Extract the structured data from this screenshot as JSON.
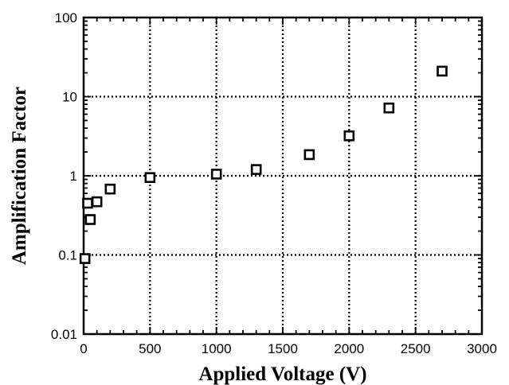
{
  "chart_data": {
    "type": "scatter",
    "xlabel": "Applied Voltage (V)",
    "ylabel": "Amplification Factor",
    "xlim": [
      0,
      3000
    ],
    "ylim": [
      0.01,
      100
    ],
    "yscale": "log",
    "grid": true,
    "x_ticks": [
      {
        "value": 0,
        "label": "0"
      },
      {
        "value": 500,
        "label": "500"
      },
      {
        "value": 1000,
        "label": "1000"
      },
      {
        "value": 1500,
        "label": "1500"
      },
      {
        "value": 2000,
        "label": "2000"
      },
      {
        "value": 2500,
        "label": "2500"
      },
      {
        "value": 3000,
        "label": "3000"
      }
    ],
    "y_ticks": [
      {
        "value": 0.01,
        "label": "0.01"
      },
      {
        "value": 0.1,
        "label": "0.1"
      },
      {
        "value": 1,
        "label": "1"
      },
      {
        "value": 10,
        "label": "10"
      },
      {
        "value": 100,
        "label": "100"
      }
    ],
    "series": [
      {
        "marker": "open-square",
        "points": [
          {
            "x": 10,
            "y": 0.09
          },
          {
            "x": 30,
            "y": 0.45
          },
          {
            "x": 50,
            "y": 0.28
          },
          {
            "x": 100,
            "y": 0.47
          },
          {
            "x": 200,
            "y": 0.68
          },
          {
            "x": 500,
            "y": 0.95
          },
          {
            "x": 1000,
            "y": 1.05
          },
          {
            "x": 1300,
            "y": 1.2
          },
          {
            "x": 1700,
            "y": 1.85
          },
          {
            "x": 2000,
            "y": 3.2
          },
          {
            "x": 2300,
            "y": 7.2
          },
          {
            "x": 2700,
            "y": 21
          }
        ]
      }
    ]
  }
}
